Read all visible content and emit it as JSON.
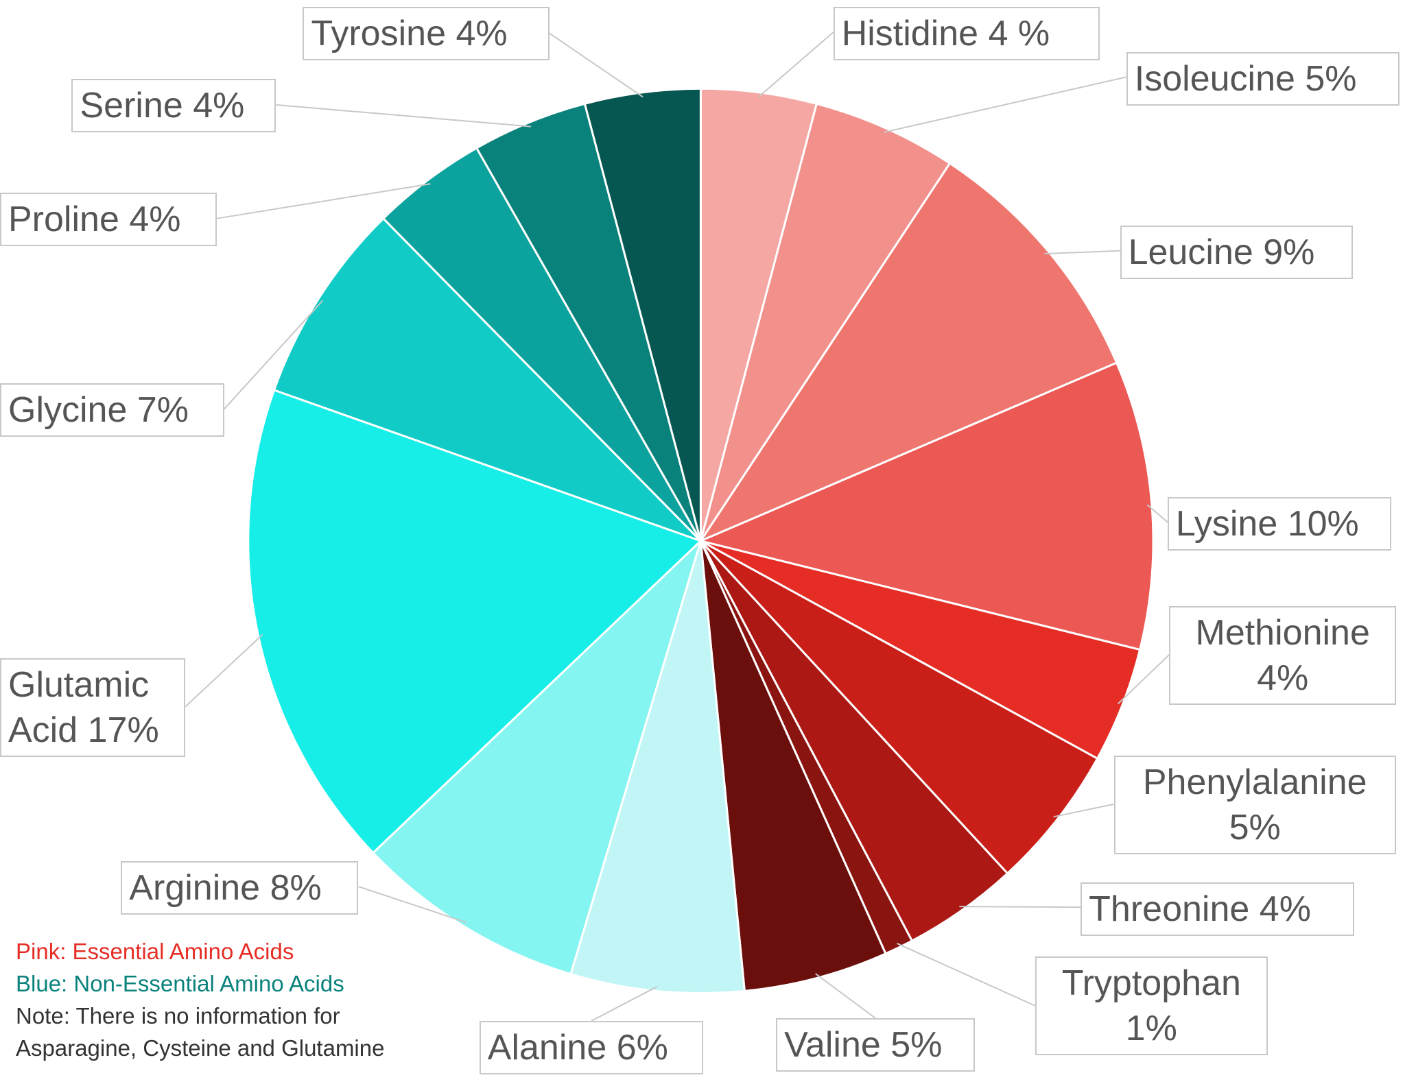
{
  "chart_data": {
    "type": "pie",
    "categories": [
      "Histidine",
      "Isoleucine",
      "Leucine",
      "Lysine",
      "Methionine",
      "Phenylalanine",
      "Threonine",
      "Tryptophan",
      "Valine",
      "Alanine",
      "Arginine",
      "Glutamic Acid",
      "Glycine",
      "Proline",
      "Serine",
      "Tyrosine"
    ],
    "values": [
      4,
      5,
      9,
      10,
      4,
      5,
      4,
      1,
      5,
      6,
      8,
      17,
      7,
      4,
      4,
      4
    ],
    "value_labels": [
      "4 %",
      "5%",
      "9%",
      "10%",
      "4%",
      "5%",
      "4%",
      "1%",
      "5%",
      "6%",
      "8%",
      "17%",
      "7%",
      "4%",
      "4%",
      "4%"
    ],
    "colors": [
      "#f4a7a3",
      "#f2908b",
      "#ee766f",
      "#ec5853",
      "#e52d25",
      "#c91f18",
      "#ac1813",
      "#8a1410",
      "#6b0f0c",
      "#c2f6f6",
      "#84f5f1",
      "#17eee8",
      "#10cbc6",
      "#0ca39e",
      "#0a827c",
      "#065651"
    ],
    "notes": [
      {
        "text": "Pink: Essential Amino Acids",
        "color": "#e52d25"
      },
      {
        "text": "Blue: Non-Essential Amino Acids",
        "color": "#0a827c"
      },
      {
        "text": "Note: There is no information for",
        "color": "#333333"
      },
      {
        "text": "Asparagine, Cysteine and Glutamine",
        "color": "#333333"
      }
    ]
  }
}
